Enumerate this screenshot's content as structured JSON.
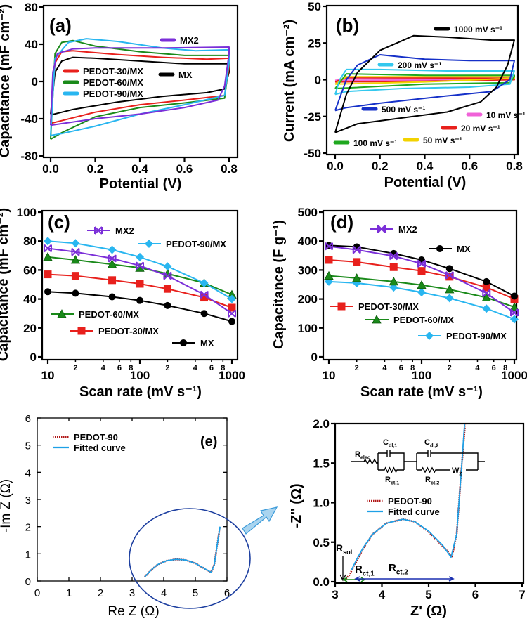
{
  "colors": {
    "MX": "#000000",
    "MX2": "#7b2fd8",
    "PEDOT-30/MX": "#e8201c",
    "PEDOT-60/MX": "#1a8a1a",
    "PEDOT-90/MX": "#29b6f0",
    "data": "#b01515",
    "fit": "#1ea0e6",
    "arrow_fill": "#a9d4ef",
    "arrow_stroke": "#3a9ad9",
    "ellipse": "#1d3fa0"
  },
  "chart_data": [
    {
      "id": "a",
      "panel_label": "(a)",
      "type": "line",
      "xlabel": "Potential (V)",
      "ylabel": "Capacitance (mF cm⁻²)",
      "xlim": [
        0,
        0.8
      ],
      "ylim": [
        -80,
        80
      ],
      "xticks": [
        0,
        0.2,
        0.4,
        0.6,
        0.8
      ],
      "xticklabels": [
        "0.0",
        "0.2",
        "0.4",
        "0.6",
        "0.8"
      ],
      "yticks": [
        -80,
        -40,
        0,
        40,
        80
      ],
      "yticklabels": [
        "-80",
        "-40",
        "0",
        "40",
        "80"
      ],
      "series": [
        {
          "name": "MX",
          "x": [
            0,
            0.02,
            0.05,
            0.1,
            0.2,
            0.4,
            0.6,
            0.78,
            0.8,
            0.8,
            0.78,
            0.7,
            0.5,
            0.3,
            0.1,
            0
          ],
          "y": [
            -35,
            10,
            22,
            26,
            25,
            22,
            19,
            19,
            19,
            10,
            -8,
            -12,
            -16,
            -22,
            -30,
            -36
          ]
        },
        {
          "name": "PEDOT-30/MX",
          "x": [
            0,
            0.02,
            0.05,
            0.1,
            0.3,
            0.5,
            0.7,
            0.8,
            0.8,
            0.78,
            0.6,
            0.4,
            0.2,
            0.05,
            0
          ],
          "y": [
            -44,
            20,
            32,
            33,
            29,
            26,
            24,
            25,
            15,
            -15,
            -20,
            -25,
            -33,
            -42,
            -45
          ]
        },
        {
          "name": "PEDOT-60/MX",
          "x": [
            0,
            0.02,
            0.05,
            0.1,
            0.2,
            0.4,
            0.6,
            0.8,
            0.8,
            0.78,
            0.6,
            0.4,
            0.2,
            0.05,
            0
          ],
          "y": [
            -62,
            30,
            42,
            44,
            38,
            32,
            28,
            28,
            20,
            -18,
            -23,
            -28,
            -38,
            -55,
            -62
          ]
        },
        {
          "name": "PEDOT-90/MX",
          "x": [
            0,
            0.02,
            0.08,
            0.16,
            0.3,
            0.5,
            0.65,
            0.8,
            0.8,
            0.78,
            0.6,
            0.4,
            0.2,
            0.05,
            0
          ],
          "y": [
            -58,
            25,
            42,
            46,
            43,
            36,
            33,
            34,
            20,
            -15,
            -25,
            -35,
            -48,
            -56,
            -58
          ]
        },
        {
          "name": "MX2",
          "x": [
            0,
            0.01,
            0.03,
            0.1,
            0.2,
            0.5,
            0.8,
            0.8,
            0.78,
            0.75,
            0.6,
            0.4,
            0.2,
            0
          ],
          "y": [
            -47,
            10,
            30,
            35,
            36,
            36,
            37,
            30,
            -5,
            -20,
            -28,
            -35,
            -40,
            -47
          ]
        }
      ],
      "legend": [
        "MX2",
        "PEDOT-30/MX",
        "PEDOT-60/MX",
        "PEDOT-90/MX",
        "MX"
      ]
    },
    {
      "id": "b",
      "panel_label": "(b)",
      "type": "line",
      "xlabel": "Potential (V)",
      "ylabel": "Current (mA cm⁻²)",
      "xlim": [
        0,
        0.8
      ],
      "ylim": [
        -50,
        50
      ],
      "xticks": [
        0,
        0.2,
        0.4,
        0.6,
        0.8
      ],
      "xticklabels": [
        "0.0",
        "0.2",
        "0.4",
        "0.6",
        "0.8"
      ],
      "yticks": [
        -50,
        -25,
        0,
        25,
        50
      ],
      "yticklabels": [
        "-50",
        "-25",
        "0",
        "25",
        "50"
      ],
      "series": [
        {
          "name": "10 mV s⁻¹",
          "color": "#f062d8",
          "x": [
            0,
            0.05,
            0.8,
            0.8,
            0.4,
            0
          ],
          "y": [
            -0.5,
            0.6,
            0.5,
            0,
            -0.4,
            -0.5
          ]
        },
        {
          "name": "20 mV s⁻¹",
          "color": "#e8201c",
          "x": [
            0,
            0.05,
            0.8,
            0.8,
            0.4,
            0
          ],
          "y": [
            -1.5,
            1.5,
            1,
            0,
            -1,
            -1.5
          ]
        },
        {
          "name": "50 mV s⁻¹",
          "color": "#f2d200",
          "x": [
            0,
            0.05,
            0.4,
            0.8,
            0.8,
            0.4,
            0
          ],
          "y": [
            -3,
            2,
            2,
            2,
            1,
            -1.5,
            -3
          ]
        },
        {
          "name": "100 mV s⁻¹",
          "color": "#1fa81f",
          "x": [
            0,
            0.05,
            0.4,
            0.8,
            0.8,
            0.78,
            0.4,
            0
          ],
          "y": [
            -6,
            4,
            3,
            3,
            2,
            -2,
            -3,
            -6
          ]
        },
        {
          "name": "200 mV s⁻¹",
          "color": "#33c8ee",
          "x": [
            0,
            0.02,
            0.05,
            0.2,
            0.5,
            0.8,
            0.8,
            0.78,
            0.6,
            0.3,
            0.05,
            0
          ],
          "y": [
            -10,
            0,
            7,
            7,
            6,
            6,
            6,
            -3,
            -5,
            -6,
            -8,
            -10
          ]
        },
        {
          "name": "500 mV s⁻¹",
          "color": "#1530c8",
          "x": [
            0,
            0.05,
            0.1,
            0.2,
            0.4,
            0.6,
            0.8,
            0.8,
            0.78,
            0.7,
            0.5,
            0.2,
            0.05,
            0
          ],
          "y": [
            -21,
            0,
            10,
            17,
            14,
            13,
            13,
            13,
            0,
            -8,
            -11,
            -16,
            -19,
            -21
          ]
        },
        {
          "name": "1000 mV s⁻¹",
          "color": "#000000",
          "x": [
            0,
            0.05,
            0.1,
            0.2,
            0.35,
            0.5,
            0.7,
            0.8,
            0.8,
            0.77,
            0.72,
            0.65,
            0.5,
            0.3,
            0.1,
            0
          ],
          "y": [
            -36,
            -10,
            5,
            20,
            30,
            29,
            27,
            27,
            27,
            10,
            -5,
            -15,
            -22,
            -26,
            -30,
            -36
          ]
        }
      ]
    },
    {
      "id": "c",
      "panel_label": "(c)",
      "type": "line",
      "xscale": "log",
      "xlabel": "Scan rate (mV s⁻¹)",
      "ylabel": "Capacitance (mF cm⁻²)",
      "xlim": [
        10,
        1000
      ],
      "ylim": [
        0,
        100
      ],
      "xticks": [
        10,
        100,
        1000
      ],
      "xticklabels": [
        "10",
        "100",
        "1000"
      ],
      "minorticks": [
        20,
        40,
        60,
        80,
        200,
        400,
        600,
        800
      ],
      "minorticklabels": [
        "2",
        "4",
        "6",
        "8",
        "2",
        "4",
        "6",
        "8"
      ],
      "yticks": [
        0,
        20,
        40,
        60,
        80,
        100
      ],
      "yticklabels": [
        "0",
        "20",
        "40",
        "60",
        "80",
        "100"
      ],
      "x": [
        10,
        20,
        50,
        100,
        200,
        500,
        1000
      ],
      "series": [
        {
          "name": "MX",
          "marker": "circle",
          "values": [
            45,
            44,
            41.5,
            39,
            35.5,
            30,
            24.5
          ]
        },
        {
          "name": "PEDOT-30/MX",
          "marker": "square",
          "values": [
            57,
            56,
            53,
            50.5,
            47,
            41,
            34
          ]
        },
        {
          "name": "PEDOT-60/MX",
          "marker": "triangle",
          "values": [
            69,
            67,
            64,
            61.5,
            57.5,
            51,
            43
          ]
        },
        {
          "name": "MX2",
          "marker": "bowtie",
          "values": [
            75,
            72.5,
            68,
            63,
            56,
            43,
            30
          ]
        },
        {
          "name": "PEDOT-90/MX",
          "marker": "diamond",
          "values": [
            80,
            78.5,
            74,
            69,
            62.5,
            51,
            40
          ]
        }
      ]
    },
    {
      "id": "d",
      "panel_label": "(d)",
      "type": "line",
      "xscale": "log",
      "xlabel": "Scan rate (mV s⁻¹)",
      "ylabel": "Capacitance (F g⁻¹)",
      "xlim": [
        10,
        1000
      ],
      "ylim": [
        0,
        500
      ],
      "xticks": [
        10,
        100,
        1000
      ],
      "xticklabels": [
        "10",
        "100",
        "1000"
      ],
      "minorticks": [
        20,
        40,
        60,
        80,
        200,
        400,
        600,
        800
      ],
      "minorticklabels": [
        "2",
        "4",
        "6",
        "8",
        "2",
        "4",
        "6",
        "8"
      ],
      "yticks": [
        0,
        100,
        200,
        300,
        400,
        500
      ],
      "yticklabels": [
        "0",
        "100",
        "200",
        "300",
        "400",
        "500"
      ],
      "x": [
        10,
        20,
        50,
        100,
        200,
        500,
        1000
      ],
      "series": [
        {
          "name": "PEDOT-90/MX",
          "marker": "diamond",
          "values": [
            260,
            255,
            240,
            223,
            203,
            167,
            130
          ]
        },
        {
          "name": "PEDOT-60/MX",
          "marker": "triangle",
          "values": [
            280,
            272,
            260,
            248,
            233,
            205,
            172
          ]
        },
        {
          "name": "PEDOT-30/MX",
          "marker": "square",
          "values": [
            335,
            328,
            310,
            297,
            277,
            240,
            200
          ]
        },
        {
          "name": "MX",
          "marker": "circle",
          "values": [
            385,
            380,
            357,
            335,
            305,
            260,
            210
          ]
        },
        {
          "name": "MX2",
          "marker": "bowtie",
          "values": [
            382,
            370,
            348,
            322,
            282,
            220,
            153
          ]
        }
      ]
    },
    {
      "id": "e",
      "panel_label": "(e)",
      "type": "scatter",
      "xlabel": "Re Z (Ω)",
      "ylabel": "-Im Z (Ω)",
      "xlim": [
        0,
        6
      ],
      "ylim": [
        0,
        6
      ],
      "xticks": [
        0,
        1,
        2,
        3,
        4,
        5,
        6
      ],
      "xticklabels": [
        "0",
        "1",
        "2",
        "3",
        "4",
        "5",
        "6"
      ],
      "yticks": [
        0,
        1,
        2,
        3,
        4,
        5,
        6
      ],
      "yticklabels": [
        "0",
        "1",
        "2",
        "3",
        "4",
        "5",
        "6"
      ],
      "series": [
        {
          "name": "PEDOT-90",
          "style": "dotted",
          "x": [
            3.4,
            3.6,
            3.8,
            4.1,
            4.4,
            4.7,
            5.0,
            5.3,
            5.5,
            5.6,
            5.7,
            5.78
          ],
          "y": [
            0.15,
            0.4,
            0.6,
            0.75,
            0.8,
            0.77,
            0.65,
            0.45,
            0.32,
            0.6,
            1.4,
            2.0
          ]
        },
        {
          "name": "Fitted curve",
          "style": "solid",
          "x": [
            3.4,
            3.6,
            3.8,
            4.1,
            4.4,
            4.7,
            5.0,
            5.3,
            5.5,
            5.6,
            5.7,
            5.78
          ],
          "y": [
            0.15,
            0.4,
            0.6,
            0.75,
            0.8,
            0.77,
            0.65,
            0.45,
            0.32,
            0.6,
            1.4,
            2.0
          ]
        }
      ]
    },
    {
      "id": "e-zoom",
      "type": "scatter",
      "xlabel": "Z' (Ω)",
      "ylabel": "-Z'' (Ω)",
      "xlim": [
        3,
        7
      ],
      "ylim": [
        0,
        2
      ],
      "xticks": [
        3,
        4,
        5,
        6,
        7
      ],
      "xticklabels": [
        "3",
        "4",
        "5",
        "6",
        "7"
      ],
      "yticks": [
        0,
        0.5,
        1,
        1.5,
        2
      ],
      "yticklabels": [
        "0.0",
        "0.5",
        "1.0",
        "1.5",
        "2.0"
      ],
      "series": [
        {
          "name": "PEDOT-90",
          "style": "dotted",
          "x": [
            3.2,
            3.3,
            3.45,
            3.6,
            3.8,
            4.1,
            4.45,
            4.7,
            5.0,
            5.3,
            5.5,
            5.6,
            5.7,
            5.78
          ],
          "y": [
            0.02,
            0.08,
            0.25,
            0.42,
            0.6,
            0.74,
            0.79,
            0.76,
            0.63,
            0.45,
            0.32,
            0.6,
            1.4,
            2.0
          ]
        },
        {
          "name": "Fitted curve",
          "style": "solid",
          "x": [
            3.35,
            3.45,
            3.6,
            3.8,
            4.1,
            4.45,
            4.7,
            5.0,
            5.3,
            5.48,
            5.6,
            5.7,
            5.77
          ],
          "y": [
            0.15,
            0.27,
            0.43,
            0.6,
            0.74,
            0.79,
            0.76,
            0.64,
            0.46,
            0.31,
            0.6,
            1.4,
            2.0
          ]
        }
      ],
      "annotations": {
        "rsol": {
          "base": "R",
          "sub": "sol"
        },
        "rct1": {
          "base": "R",
          "sub": "ct,1"
        },
        "rct2": {
          "base": "R",
          "sub": "ct,2"
        }
      },
      "circuit": {
        "relec": {
          "base": "R",
          "sub": "elec"
        },
        "cdl1": {
          "base": "C",
          "sub": "dl,1"
        },
        "cdl2": {
          "base": "C",
          "sub": "dl,2"
        },
        "rct1": {
          "base": "R",
          "sub": "ct,1"
        },
        "rct2": {
          "base": "R",
          "sub": "ct,2"
        },
        "w2": {
          "base": "W",
          "sub": "2"
        }
      }
    }
  ]
}
